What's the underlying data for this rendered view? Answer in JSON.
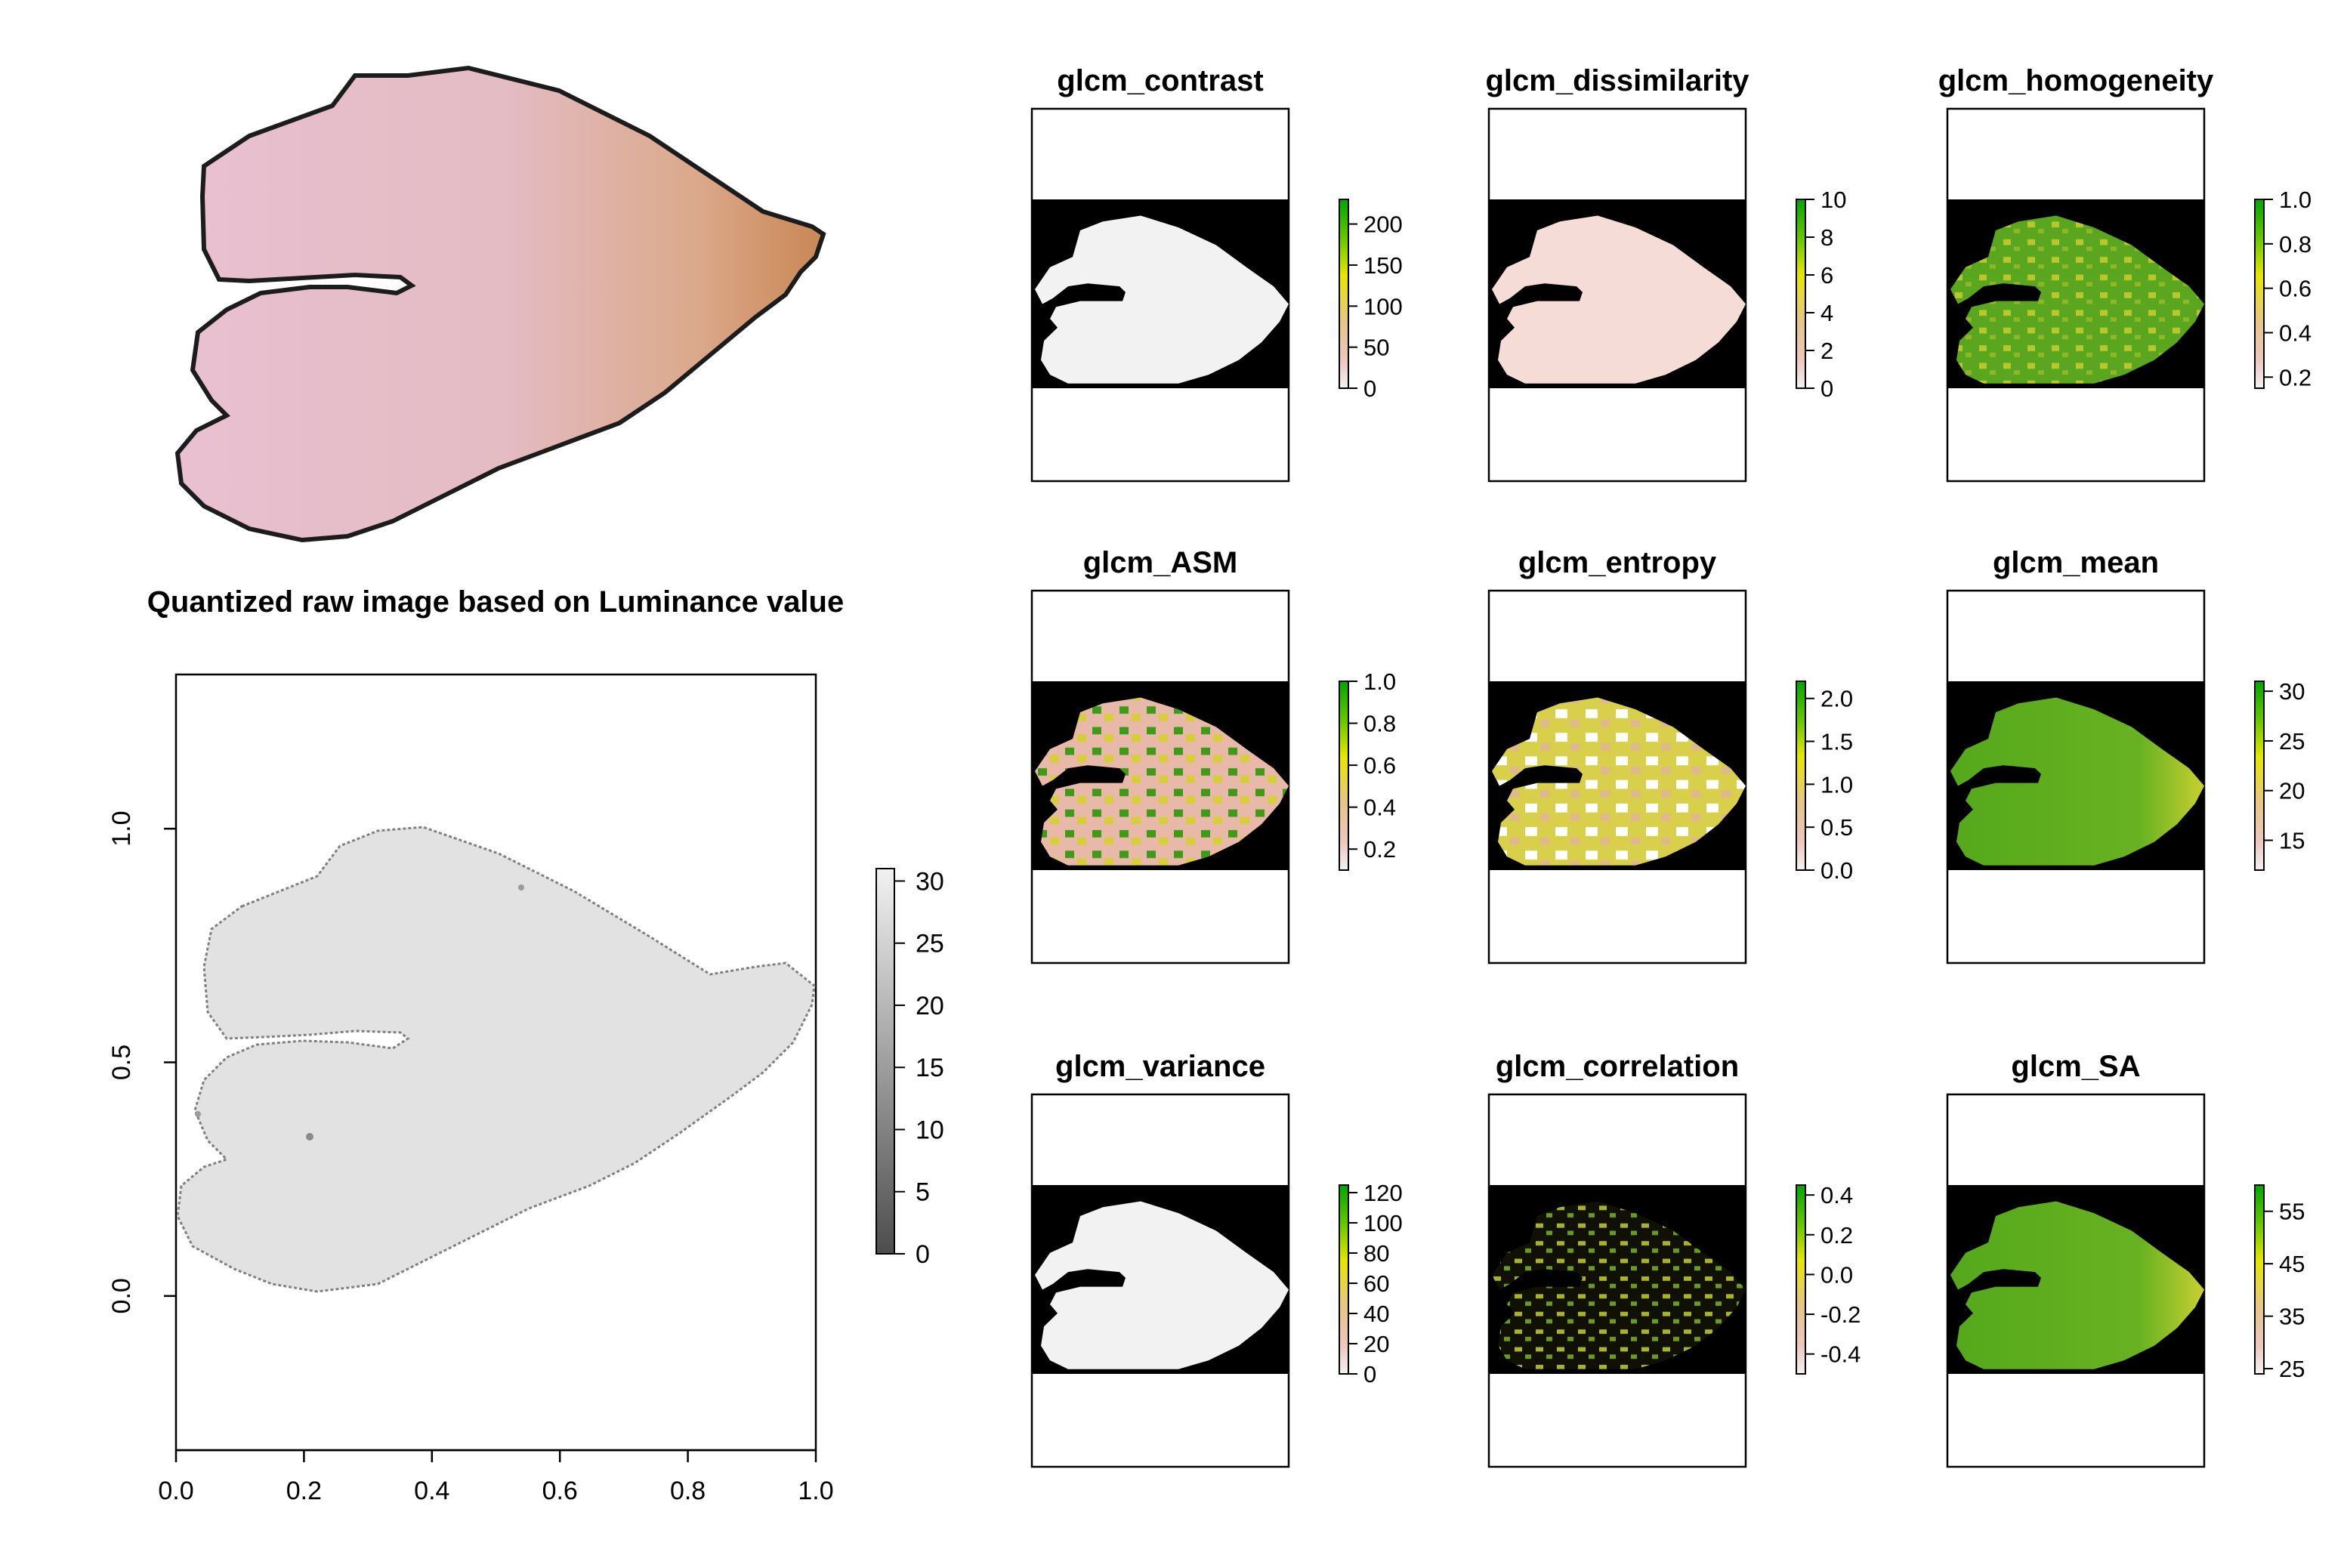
{
  "figure": {
    "leaf_photo": "leaf-photo",
    "luminance_plot": {
      "title": "Quantized raw image based on Luminance value",
      "xticks": [
        "0.0",
        "0.2",
        "0.4",
        "0.6",
        "0.8",
        "1.0"
      ],
      "yticks": [
        "0.0",
        "0.5",
        "1.0"
      ],
      "colorbar_ticks": [
        "0",
        "5",
        "10",
        "15",
        "20",
        "25",
        "30"
      ]
    },
    "panels": [
      {
        "title": "glcm_contrast",
        "ticks": [
          "0",
          "50",
          "100",
          "150",
          "200"
        ],
        "fill": "#f2f2f2"
      },
      {
        "title": "glcm_dissimilarity",
        "ticks": [
          "0",
          "2",
          "4",
          "6",
          "8",
          "10"
        ],
        "fill": "#f5dcd6"
      },
      {
        "title": "glcm_homogeneity",
        "ticks": [
          "0.2",
          "0.4",
          "0.6",
          "0.8",
          "1.0"
        ],
        "fill": "#6cb022"
      },
      {
        "title": "glcm_ASM",
        "ticks": [
          "0.2",
          "0.4",
          "0.6",
          "0.8",
          "1.0"
        ],
        "fill": "#d9b27c"
      },
      {
        "title": "glcm_entropy",
        "ticks": [
          "0.0",
          "0.5",
          "1.0",
          "1.5",
          "2.0"
        ],
        "fill": "#d8d24a"
      },
      {
        "title": "glcm_mean",
        "ticks": [
          "15",
          "20",
          "25",
          "30"
        ],
        "fill": "#5aa81e"
      },
      {
        "title": "glcm_variance",
        "ticks": [
          "0",
          "20",
          "40",
          "60",
          "80",
          "100",
          "120"
        ],
        "fill": "#f2f2f2"
      },
      {
        "title": "glcm_correlation",
        "ticks": [
          "-0.4",
          "-0.2",
          "0.0",
          "0.2",
          "0.4"
        ],
        "fill": "#1a1a05"
      },
      {
        "title": "glcm_SA",
        "ticks": [
          "25",
          "35",
          "45",
          "55"
        ],
        "fill": "#5aa81e"
      }
    ],
    "colors": {
      "leaf_pink": "#e6bccb",
      "leaf_brown": "#cf8c5c",
      "luminance_fill": "#e2e2e2",
      "terrain_high": "#00a600",
      "terrain_mid": "#e6e600",
      "terrain_low": "#f2f2f2"
    }
  },
  "chart_data": {
    "type": "heatmap",
    "title": "Quantized raw image based on Luminance value",
    "xlim": [
      0.0,
      1.0
    ],
    "ylim": [
      -0.33,
      1.33
    ],
    "colorbar_range": [
      0,
      31
    ],
    "panel_scales": [
      {
        "name": "glcm_contrast",
        "range": [
          0,
          230
        ]
      },
      {
        "name": "glcm_dissimilarity",
        "range": [
          0,
          10
        ]
      },
      {
        "name": "glcm_homogeneity",
        "range": [
          0.15,
          1.0
        ]
      },
      {
        "name": "glcm_ASM",
        "range": [
          0.1,
          1.0
        ]
      },
      {
        "name": "glcm_entropy",
        "range": [
          0.0,
          2.2
        ]
      },
      {
        "name": "glcm_mean",
        "range": [
          12,
          31
        ]
      },
      {
        "name": "glcm_variance",
        "range": [
          0,
          125
        ]
      },
      {
        "name": "glcm_correlation",
        "range": [
          -0.5,
          0.45
        ]
      },
      {
        "name": "glcm_SA",
        "range": [
          24,
          60
        ]
      }
    ]
  }
}
